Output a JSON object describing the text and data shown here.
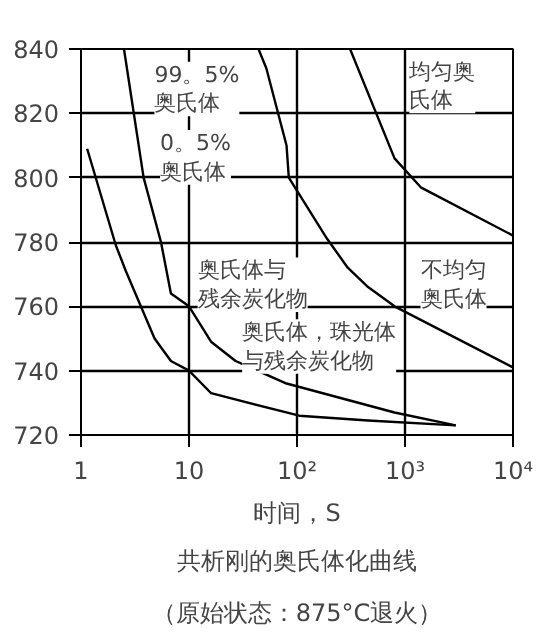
{
  "chart_data": {
    "type": "line",
    "xlabel": "时间，S",
    "log": "x",
    "grid": true,
    "xlim": [
      1,
      10000
    ],
    "ylim": [
      720,
      840
    ],
    "xticks": [
      1,
      10,
      {
        "value": 100,
        "label": "10²"
      },
      {
        "value": 1000,
        "label": "10³"
      },
      {
        "value": 10000,
        "label": "10⁴"
      }
    ],
    "yticks": [
      720,
      740,
      760,
      780,
      800,
      820,
      840
    ],
    "series": [
      {
        "color": "#000000",
        "x": [
          1.14,
          2.1,
          2.6,
          4.8,
          6.8,
          10,
          14,
          16,
          105,
          455,
          2950
        ],
        "values": [
          809,
          779,
          771,
          750,
          743,
          740,
          735,
          733,
          726,
          724.5,
          723
        ]
      },
      {
        "color": "#000000",
        "x": [
          2.5,
          3.8,
          5.5,
          6.8,
          10,
          16,
          27,
          80,
          800,
          2950
        ],
        "values": [
          840,
          800,
          780,
          764,
          760,
          749,
          743,
          736,
          727,
          723
        ]
      },
      {
        "color": "#000000",
        "x": [
          44,
          52,
          80,
          84,
          190,
          295,
          455,
          800,
          10000
        ],
        "values": [
          840,
          834,
          810,
          800,
          781,
          772,
          766,
          760,
          741
        ]
      },
      {
        "color": "#000000",
        "x": [
          310,
          800,
          1400,
          10000
        ],
        "values": [
          840,
          806,
          797,
          782
        ]
      }
    ],
    "annotations": [
      "99。5%奥氏体",
      "0。5%奥氏体",
      "均匀奥氏体",
      "奥氏体与残余炭化物",
      "不均匀奥氏体",
      "奥氏体，珠光体与残余炭化物",
      "共析刚的奥氏体化曲线",
      "（原始状态：875°C退火）"
    ]
  }
}
